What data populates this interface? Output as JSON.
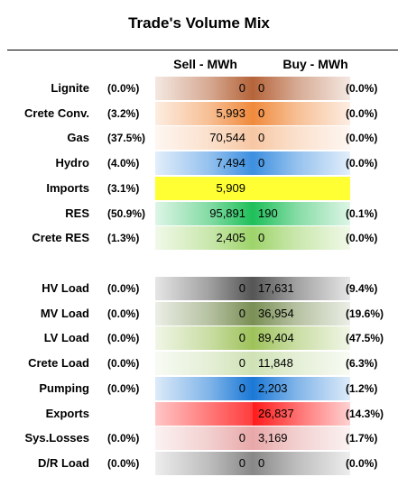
{
  "title": "Trade's Volume Mix",
  "headers": {
    "sell": "Sell - MWh",
    "buy": "Buy - MWh"
  },
  "chart_data": {
    "type": "table",
    "title": "Trade's Volume Mix",
    "columns": [
      "Sell - MWh",
      "Buy - MWh"
    ],
    "groups": [
      {
        "rows": [
          {
            "label": "Lignite",
            "sell": "0",
            "sell_pct": "(0.0%)",
            "buy": "0",
            "buy_pct": "(0.0%)",
            "color": "#b5643a"
          },
          {
            "label": "Crete Conv.",
            "sell": "5,993",
            "sell_pct": "(3.2%)",
            "buy": "0",
            "buy_pct": "(0.0%)",
            "color": "#f08a3c"
          },
          {
            "label": "Gas",
            "sell": "70,544",
            "sell_pct": "(37.5%)",
            "buy": "0",
            "buy_pct": "(0.0%)",
            "color": "#f7c7a3"
          },
          {
            "label": "Hydro",
            "sell": "7,494",
            "sell_pct": "(4.0%)",
            "buy": "0",
            "buy_pct": "(0.0%)",
            "color": "#3d8fe0"
          },
          {
            "label": "Imports",
            "sell": "5,909",
            "sell_pct": "(3.1%)",
            "buy": "",
            "buy_pct": "",
            "color": "#ffff33"
          },
          {
            "label": "RES",
            "sell": "95,891",
            "sell_pct": "(50.9%)",
            "buy": "190",
            "buy_pct": "(0.1%)",
            "color": "#1fbf5a"
          },
          {
            "label": "Crete RES",
            "sell": "2,405",
            "sell_pct": "(1.3%)",
            "buy": "0",
            "buy_pct": "(0.0%)",
            "color": "#9ed46a"
          }
        ]
      },
      {
        "rows": [
          {
            "label": "HV Load",
            "sell": "0",
            "sell_pct": "(0.0%)",
            "buy": "17,631",
            "buy_pct": "(9.4%)",
            "color": "#555555"
          },
          {
            "label": "MV Load",
            "sell": "0",
            "sell_pct": "(0.0%)",
            "buy": "36,954",
            "buy_pct": "(19.6%)",
            "color": "#7a8f55"
          },
          {
            "label": "LV Load",
            "sell": "0",
            "sell_pct": "(0.0%)",
            "buy": "89,404",
            "buy_pct": "(47.5%)",
            "color": "#9ec25a"
          },
          {
            "label": "Crete Load",
            "sell": "0",
            "sell_pct": "(0.0%)",
            "buy": "11,848",
            "buy_pct": "(6.3%)",
            "color": "#cfe2b5"
          },
          {
            "label": "Pumping",
            "sell": "0",
            "sell_pct": "(0.0%)",
            "buy": "2,203",
            "buy_pct": "(1.2%)",
            "color": "#1a78d6"
          },
          {
            "label": "Exports",
            "sell": "",
            "sell_pct": "",
            "buy": "26,837",
            "buy_pct": "(14.3%)",
            "color": "#ff1a1a"
          },
          {
            "label": "Sys.Losses",
            "sell": "0",
            "sell_pct": "(0.0%)",
            "buy": "3,169",
            "buy_pct": "(1.7%)",
            "color": "#e8a8a8"
          },
          {
            "label": "D/R Load",
            "sell": "0",
            "sell_pct": "(0.0%)",
            "buy": "0",
            "buy_pct": "(0.0%)",
            "color": "#888888"
          }
        ]
      }
    ]
  }
}
